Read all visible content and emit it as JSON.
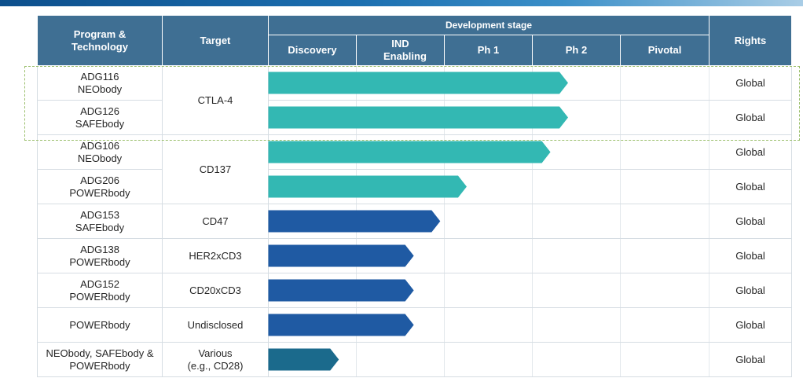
{
  "header": {
    "program": "Program & Technology",
    "target": "Target",
    "development_stage": "Development stage",
    "rights": "Rights",
    "stages": [
      "Discovery",
      "IND Enabling",
      "Ph 1",
      "Ph 2",
      "Pivotal"
    ]
  },
  "rows": [
    {
      "program_line1": "ADG116",
      "program_line2": "NEObody",
      "target": "CTLA-4",
      "rights": "Global"
    },
    {
      "program_line1": "ADG126",
      "program_line2": "SAFEbody",
      "target": "CTLA-4",
      "rights": "Global"
    },
    {
      "program_line1": "ADG106",
      "program_line2": "NEObody",
      "target": "CD137",
      "rights": "Global"
    },
    {
      "program_line1": "ADG206",
      "program_line2": "POWERbody",
      "target": "CD137",
      "rights": "Global"
    },
    {
      "program_line1": "ADG153",
      "program_line2": "SAFEbody",
      "target": "CD47",
      "rights": "Global"
    },
    {
      "program_line1": "ADG138",
      "program_line2": "POWERbody",
      "target": "HER2xCD3",
      "rights": "Global"
    },
    {
      "program_line1": "ADG152",
      "program_line2": "POWERbody",
      "target": "CD20xCD3",
      "rights": "Global"
    },
    {
      "program_line1": "POWERbody",
      "program_line2": "",
      "target": "Undisclosed",
      "rights": "Global"
    },
    {
      "program_line1": "NEObody, SAFEbody &",
      "program_line2": "POWERbody",
      "target_line1": "Various",
      "target_line2": "(e.g., CD28)",
      "rights": "Global"
    }
  ],
  "chart_data": {
    "type": "bar",
    "orientation": "horizontal",
    "value_axis": "development stage progress (stage columns: Discovery=1 ... Pivotal=5)",
    "categories": [
      "ADG116 NEObody",
      "ADG126 SAFEbody",
      "ADG106 NEObody",
      "ADG206 POWERbody",
      "ADG153 SAFEbody",
      "ADG138 POWERbody",
      "ADG152 POWERbody",
      "POWERbody",
      "NEObody, SAFEbody & POWERbody"
    ],
    "values": [
      3.4,
      3.4,
      3.2,
      2.25,
      1.95,
      1.65,
      1.65,
      1.65,
      0.8
    ],
    "colors": [
      "#33b8b3",
      "#33b8b3",
      "#33b8b3",
      "#33b8b3",
      "#1f5aa3",
      "#1f5aa3",
      "#1f5aa3",
      "#1f5aa3",
      "#1b6a8c"
    ],
    "xlim": [
      0,
      5
    ],
    "highlighted_rows": [
      0,
      1
    ]
  }
}
